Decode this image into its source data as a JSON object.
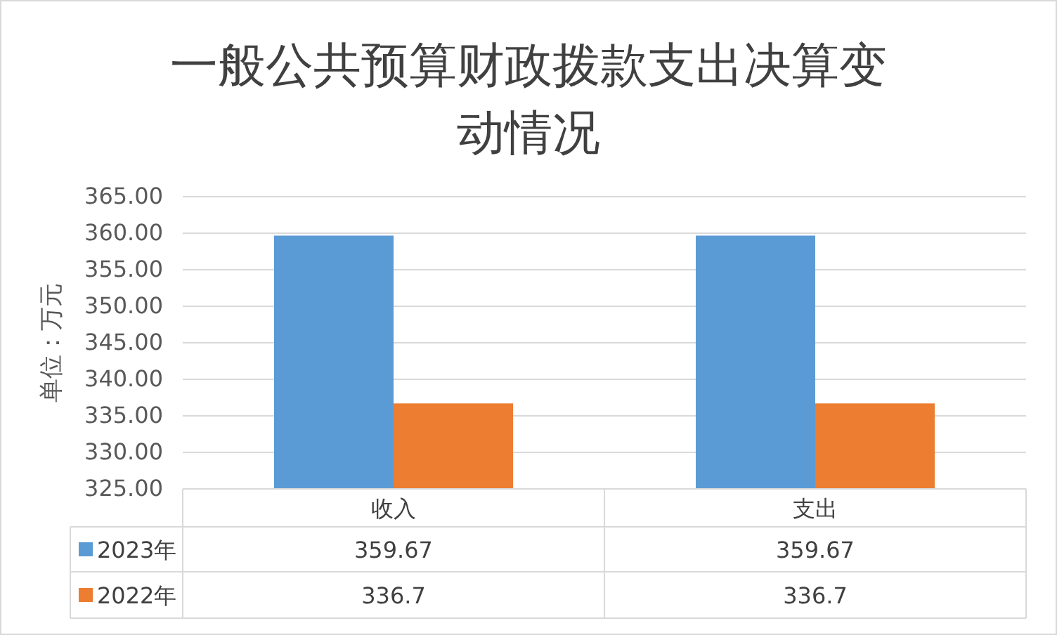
{
  "chart_data": {
    "type": "bar",
    "title": "一般公共预算财政拨款支出决算变动情况",
    "ylabel": "单位：万元",
    "categories": [
      "收入",
      "支出"
    ],
    "series": [
      {
        "name": "2023年",
        "color": "#5b9bd5",
        "values": [
          359.67,
          359.67
        ]
      },
      {
        "name": "2022年",
        "color": "#ed7d31",
        "values": [
          336.7,
          336.7
        ]
      }
    ],
    "ylim": [
      325,
      365
    ],
    "yticks": [
      {
        "value": 325,
        "label": "325.00"
      },
      {
        "value": 330,
        "label": "330.00"
      },
      {
        "value": 335,
        "label": "335.00"
      },
      {
        "value": 340,
        "label": "340.00"
      },
      {
        "value": 345,
        "label": "345.00"
      },
      {
        "value": 350,
        "label": "350.00"
      },
      {
        "value": 355,
        "label": "355.00"
      },
      {
        "value": 360,
        "label": "360.00"
      },
      {
        "value": 365,
        "label": "365.00"
      }
    ],
    "grid": "y",
    "legend": "bottom",
    "data_labels": true
  }
}
